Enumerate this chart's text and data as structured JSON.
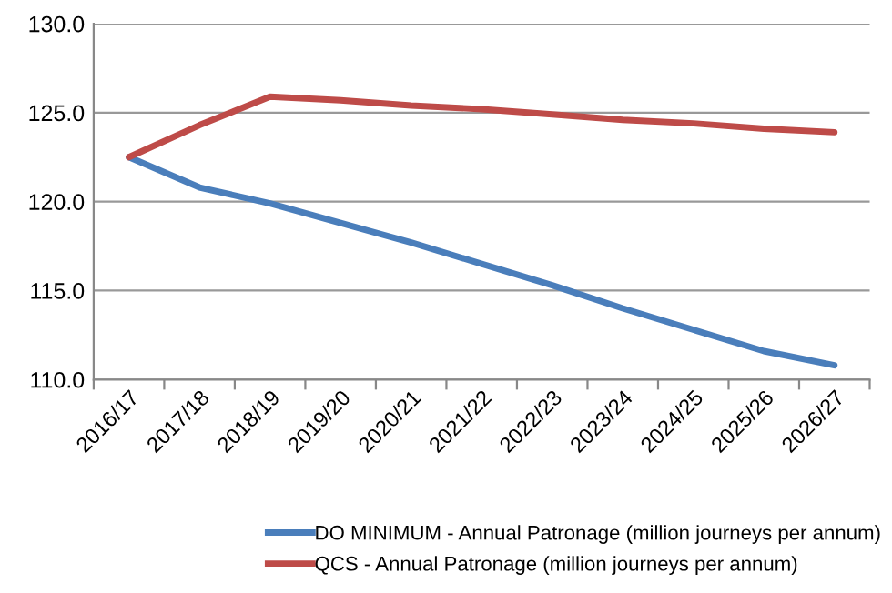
{
  "chart_data": {
    "type": "line",
    "categories": [
      "2016/17",
      "2017/18",
      "2018/19",
      "2019/20",
      "2020/21",
      "2021/22",
      "2022/23",
      "2023/24",
      "2024/25",
      "2025/26",
      "2026/27"
    ],
    "series": [
      {
        "name": "DO MINIMUM - Annual Patronage (million journeys per annum)",
        "color": "#4a7ebb",
        "values": [
          122.5,
          120.8,
          119.9,
          118.8,
          117.7,
          116.5,
          115.3,
          114.0,
          112.8,
          111.6,
          110.8
        ]
      },
      {
        "name": "QCS - Annual Patronage (million journeys per annum)",
        "color": "#be4b48",
        "values": [
          122.5,
          124.3,
          125.9,
          125.7,
          125.4,
          125.2,
          124.9,
          124.6,
          124.4,
          124.1,
          123.9
        ]
      }
    ],
    "ylim": [
      110,
      130
    ],
    "yticks": [
      {
        "value": 110,
        "label": "110.0"
      },
      {
        "value": 115,
        "label": "115.0"
      },
      {
        "value": 120,
        "label": "120.0"
      },
      {
        "value": 125,
        "label": "125.0"
      },
      {
        "value": 130,
        "label": "130.0"
      }
    ],
    "grid": "y",
    "legend": "bottom",
    "marker": "none",
    "line_style": "solid"
  }
}
